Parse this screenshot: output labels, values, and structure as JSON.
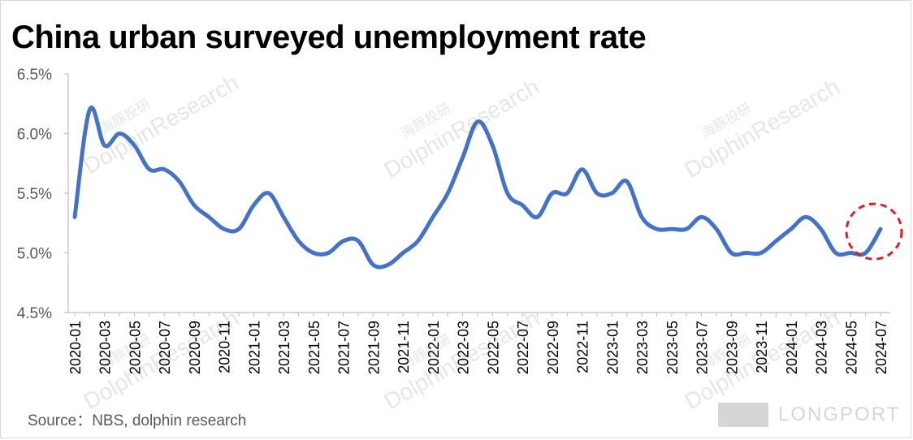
{
  "chart_data": {
    "type": "line",
    "title": "China urban surveyed unemployment rate",
    "source": "Source：NBS, dolphin research",
    "ylim": [
      4.5,
      6.5
    ],
    "yticks": [
      4.5,
      5.0,
      5.5,
      6.0,
      6.5
    ],
    "ytick_labels": [
      "4.5%",
      "5.0%",
      "5.5%",
      "6.0%",
      "6.5%"
    ],
    "x": [
      "2020-01",
      "2020-02",
      "2020-03",
      "2020-04",
      "2020-05",
      "2020-06",
      "2020-07",
      "2020-08",
      "2020-09",
      "2020-10",
      "2020-11",
      "2020-12",
      "2021-01",
      "2021-02",
      "2021-03",
      "2021-04",
      "2021-05",
      "2021-06",
      "2021-07",
      "2021-08",
      "2021-09",
      "2021-10",
      "2021-11",
      "2021-12",
      "2022-01",
      "2022-02",
      "2022-03",
      "2022-04",
      "2022-05",
      "2022-06",
      "2022-07",
      "2022-08",
      "2022-09",
      "2022-10",
      "2022-11",
      "2022-12",
      "2023-01",
      "2023-02",
      "2023-03",
      "2023-04",
      "2023-05",
      "2023-06",
      "2023-07",
      "2023-08",
      "2023-09",
      "2023-10",
      "2023-11",
      "2023-12",
      "2024-01",
      "2024-02",
      "2024-03",
      "2024-04",
      "2024-05",
      "2024-06",
      "2024-07"
    ],
    "xtick_labels": [
      "2020-01",
      "2020-03",
      "2020-05",
      "2020-07",
      "2020-09",
      "2020-11",
      "2021-01",
      "2021-03",
      "2021-05",
      "2021-07",
      "2021-09",
      "2021-11",
      "2022-01",
      "2022-03",
      "2022-05",
      "2022-07",
      "2022-09",
      "2022-11",
      "2023-01",
      "2023-03",
      "2023-05",
      "2023-07",
      "2023-09",
      "2023-11",
      "2024-01",
      "2024-03",
      "2024-05",
      "2024-07"
    ],
    "series": [
      {
        "values": [
          5.3,
          6.2,
          5.9,
          6.0,
          5.9,
          5.7,
          5.7,
          5.6,
          5.4,
          5.3,
          5.2,
          5.2,
          5.4,
          5.5,
          5.3,
          5.1,
          5.0,
          5.0,
          5.1,
          5.1,
          4.9,
          4.9,
          5.0,
          5.1,
          5.3,
          5.5,
          5.8,
          6.1,
          5.9,
          5.5,
          5.4,
          5.3,
          5.5,
          5.5,
          5.7,
          5.5,
          5.5,
          5.6,
          5.3,
          5.2,
          5.2,
          5.2,
          5.3,
          5.2,
          5.0,
          5.0,
          5.0,
          5.1,
          5.2,
          5.3,
          5.2,
          5.0,
          5.0,
          5.0,
          5.2
        ],
        "color": "#4472c4"
      }
    ],
    "highlight": {
      "shape": "dashed-circle",
      "target": "2024-07",
      "color": "#e02020"
    },
    "grid": false,
    "legend": "none"
  },
  "watermark": {
    "brand_cn": "海豚投研",
    "brand_en": "DolphinResearch",
    "logo_text": "LONGPORT"
  }
}
